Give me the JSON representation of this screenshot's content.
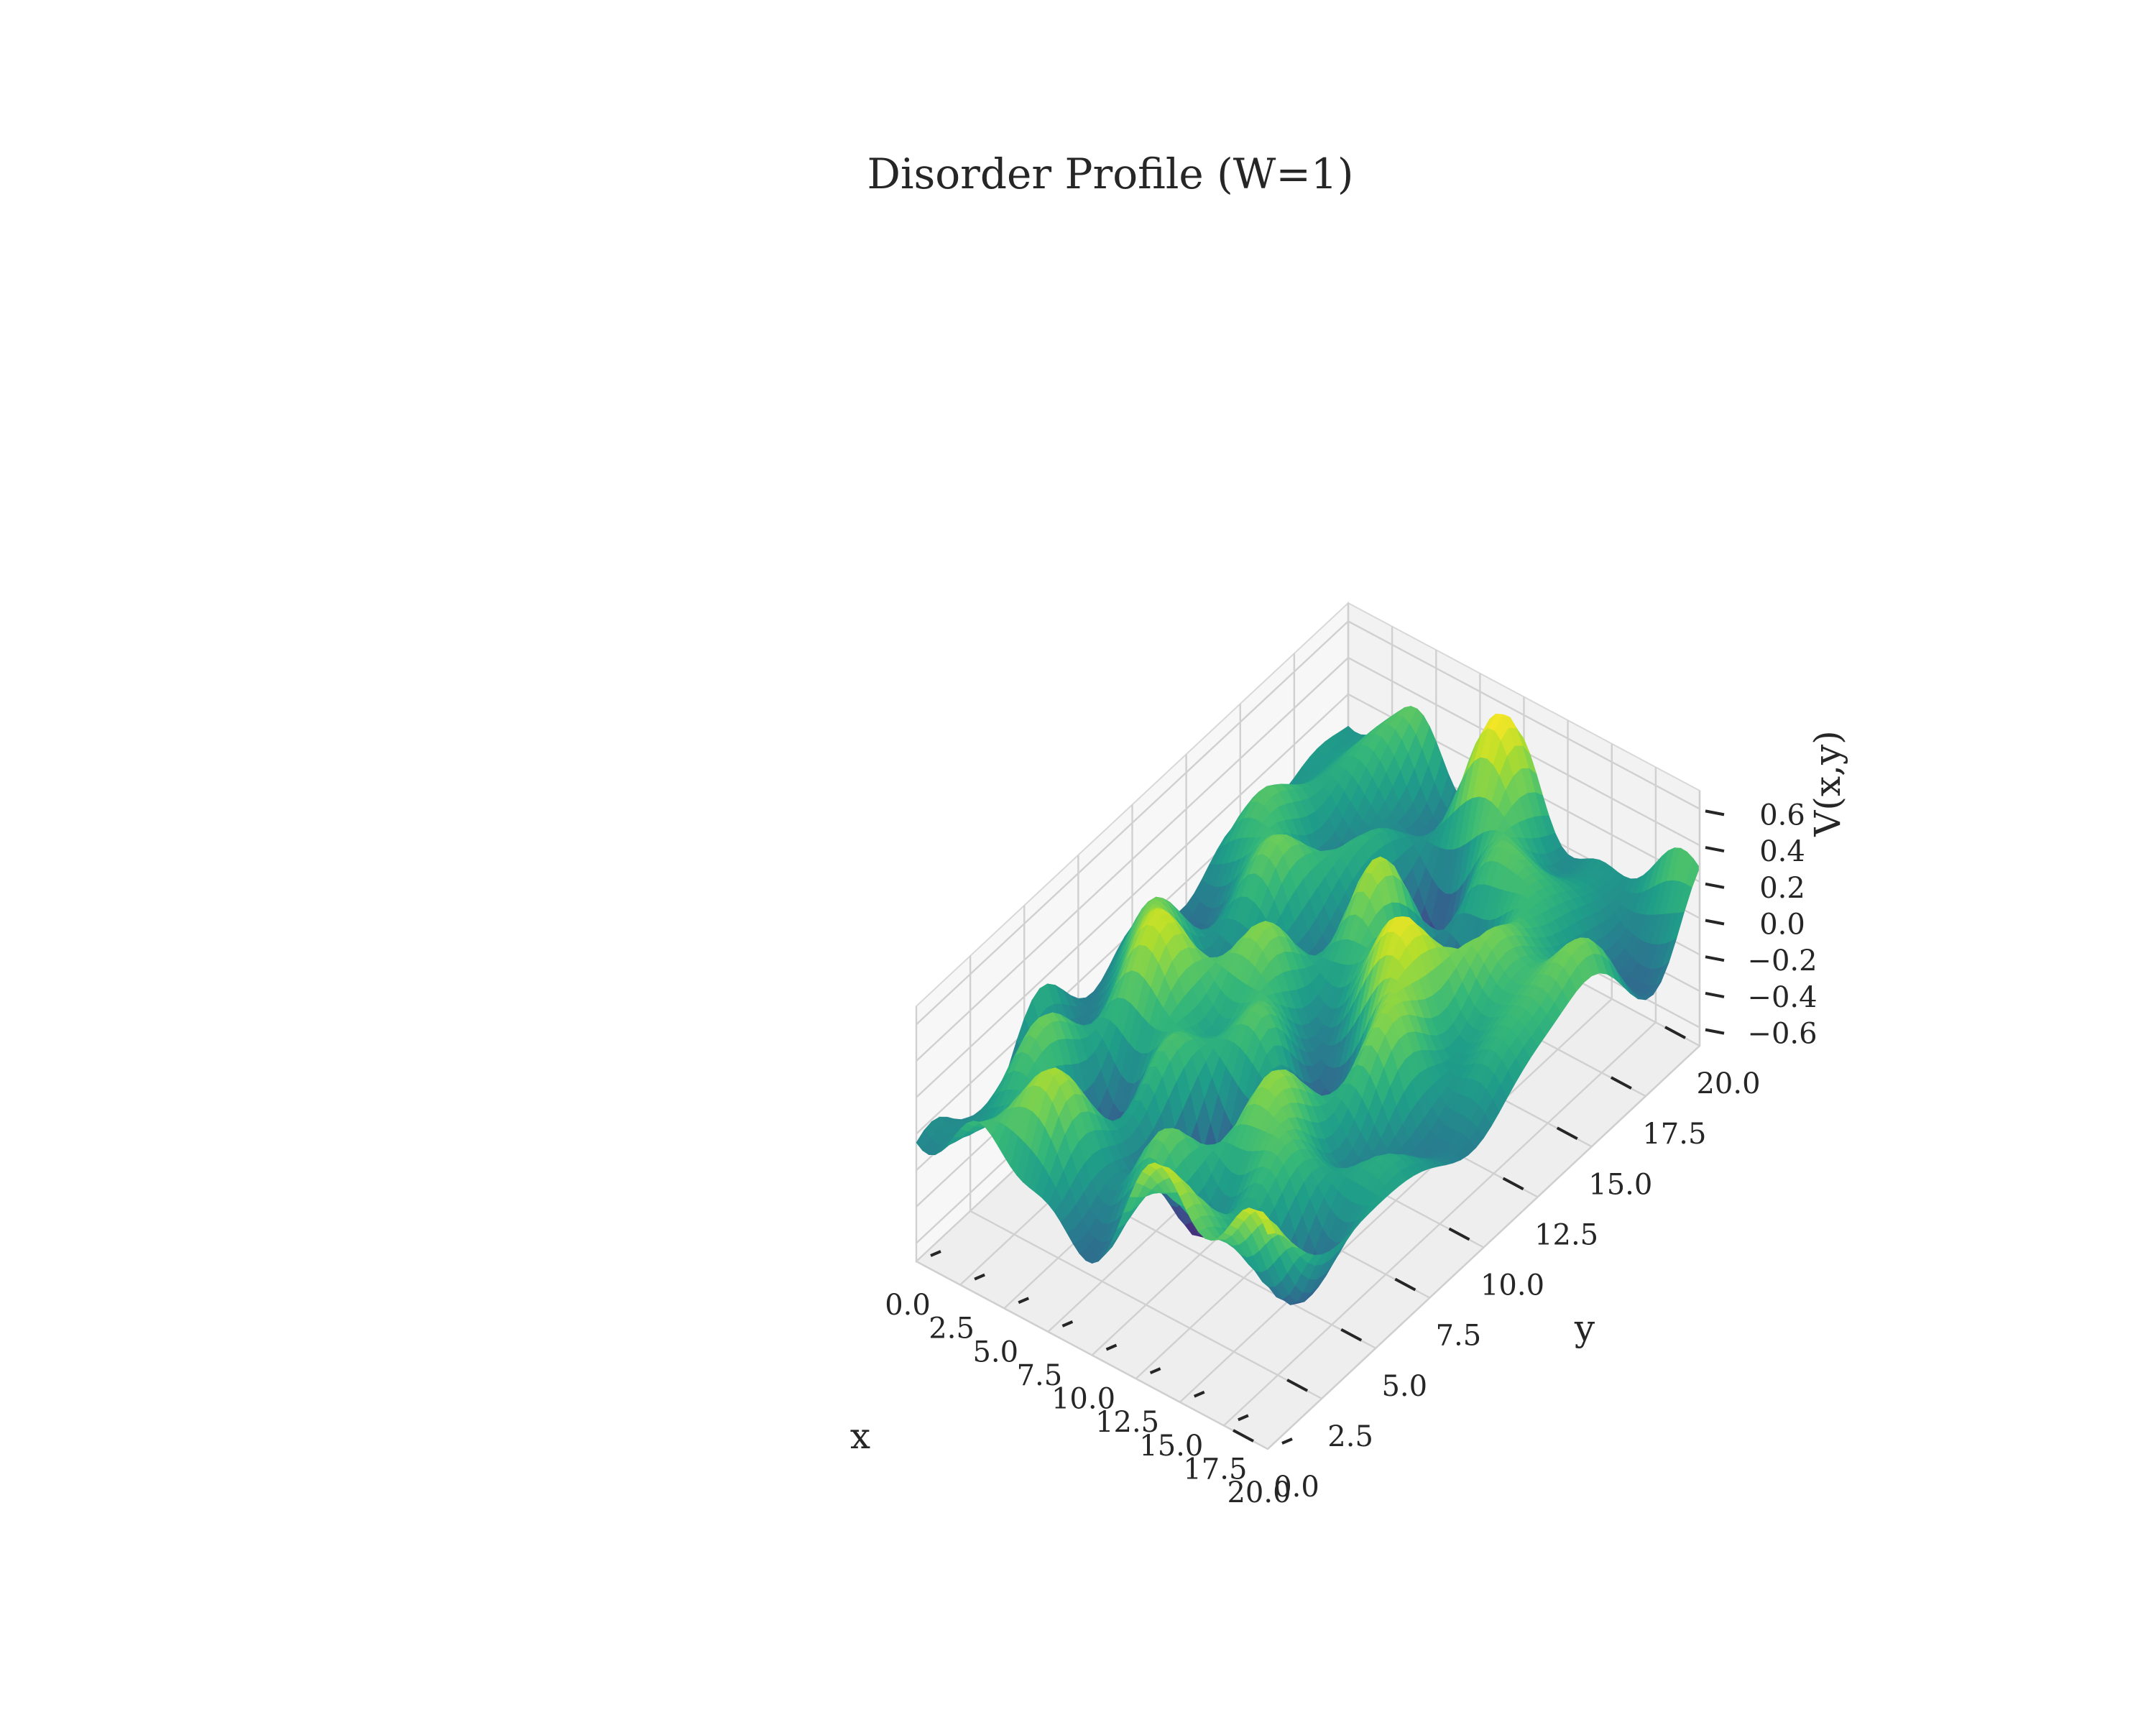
{
  "chart_data": {
    "type": "surface",
    "title": "Disorder Profile (W=1)",
    "xlabel": "x",
    "ylabel": "y",
    "zlabel": "V(x,y)",
    "xlim": [
      0,
      20
    ],
    "ylim": [
      0,
      20
    ],
    "zlim": [
      -0.7,
      0.7
    ],
    "x_ticks": [
      "0.0",
      "2.5",
      "5.0",
      "7.5",
      "10.0",
      "12.5",
      "15.0",
      "17.5",
      "20.0"
    ],
    "y_ticks": [
      "0.0",
      "2.5",
      "5.0",
      "7.5",
      "10.0",
      "12.5",
      "15.0",
      "17.5",
      "20.0"
    ],
    "z_ticks": [
      "−0.6",
      "−0.4",
      "−0.2",
      "0.0",
      "0.2",
      "0.4",
      "0.6"
    ],
    "z_tick_values": [
      -0.6,
      -0.4,
      -0.2,
      0.0,
      0.2,
      0.4,
      0.6
    ],
    "colormap": "viridis",
    "z_range_shown": [
      -0.68,
      0.65
    ],
    "grid": true,
    "description_of_surface": "random smooth disorder potential sampled on a 0–20 × 0–20 grid"
  },
  "colors": {
    "viridis": [
      "#440154",
      "#482878",
      "#3e4a89",
      "#31688e",
      "#26828e",
      "#1f9e89",
      "#35b779",
      "#6ece58",
      "#b5de2b",
      "#fde725"
    ]
  }
}
